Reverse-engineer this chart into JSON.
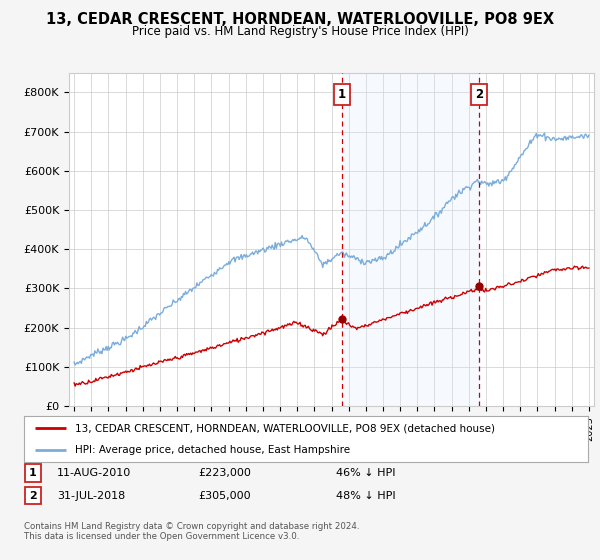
{
  "title": "13, CEDAR CRESCENT, HORNDEAN, WATERLOOVILLE, PO8 9EX",
  "subtitle": "Price paid vs. HM Land Registry's House Price Index (HPI)",
  "ylim": [
    0,
    850000
  ],
  "yticks": [
    0,
    100000,
    200000,
    300000,
    400000,
    500000,
    600000,
    700000,
    800000
  ],
  "ytick_labels": [
    "£0",
    "£100K",
    "£200K",
    "£300K",
    "£400K",
    "£500K",
    "£600K",
    "£700K",
    "£800K"
  ],
  "hpi_color": "#7aaddc",
  "price_color": "#cc0000",
  "dashed_color": "#cc0000",
  "shade_color": "#ddeeff",
  "background_color": "#f5f5f5",
  "plot_bg": "#ffffff",
  "sale1_x": 2010.6,
  "sale1_y": 223000,
  "sale1_label": "1",
  "sale2_x": 2018.58,
  "sale2_y": 305000,
  "sale2_label": "2",
  "legend_entry1": "13, CEDAR CRESCENT, HORNDEAN, WATERLOOVILLE, PO8 9EX (detached house)",
  "legend_entry2": "HPI: Average price, detached house, East Hampshire",
  "note1_label": "1",
  "note1_date": "11-AUG-2010",
  "note1_price": "£223,000",
  "note1_pct": "46% ↓ HPI",
  "note2_label": "2",
  "note2_date": "31-JUL-2018",
  "note2_price": "£305,000",
  "note2_pct": "48% ↓ HPI",
  "footer": "Contains HM Land Registry data © Crown copyright and database right 2024.\nThis data is licensed under the Open Government Licence v3.0.",
  "xlim_left": 1994.7,
  "xlim_right": 2025.3
}
